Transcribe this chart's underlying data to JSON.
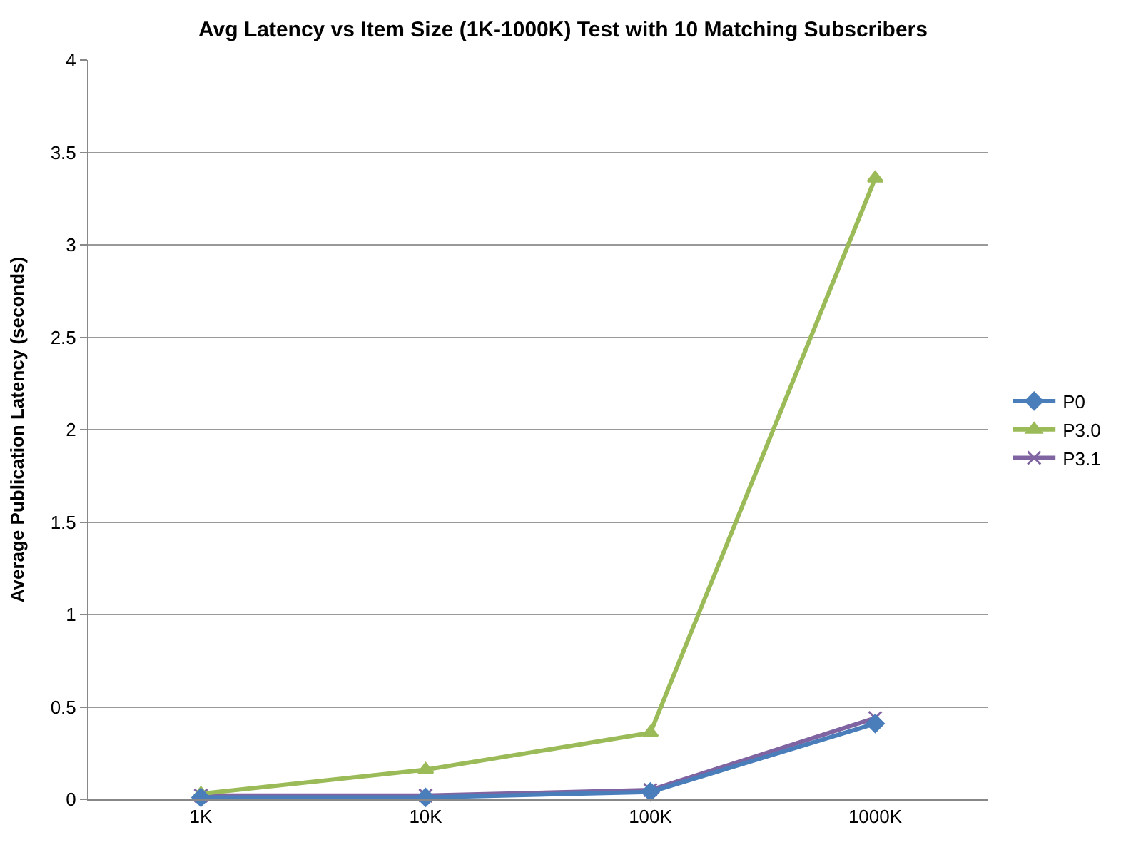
{
  "chart_data": {
    "type": "line",
    "title": "Avg Latency vs Item Size (1K-1000K) Test with 10 Matching Subscribers",
    "ylabel": "Average Publication Latency (seconds)",
    "categories": [
      "1K",
      "10K",
      "100K",
      "1000K"
    ],
    "series": [
      {
        "name": "P0",
        "color": "#4a7ebb",
        "marker": "diamond",
        "values": [
          0.01,
          0.01,
          0.04,
          0.41
        ]
      },
      {
        "name": "P3.0",
        "color": "#9bbb59",
        "marker": "triangle",
        "values": [
          0.03,
          0.16,
          0.36,
          3.36
        ]
      },
      {
        "name": "P3.1",
        "color": "#8064a2",
        "marker": "cross",
        "values": [
          0.02,
          0.02,
          0.05,
          0.44
        ]
      }
    ],
    "ylim": [
      0,
      4
    ],
    "yticks": [
      0,
      0.5,
      1,
      1.5,
      2,
      2.5,
      3,
      3.5,
      4
    ],
    "grid": "y",
    "legend": "right",
    "line_style": "solid"
  }
}
